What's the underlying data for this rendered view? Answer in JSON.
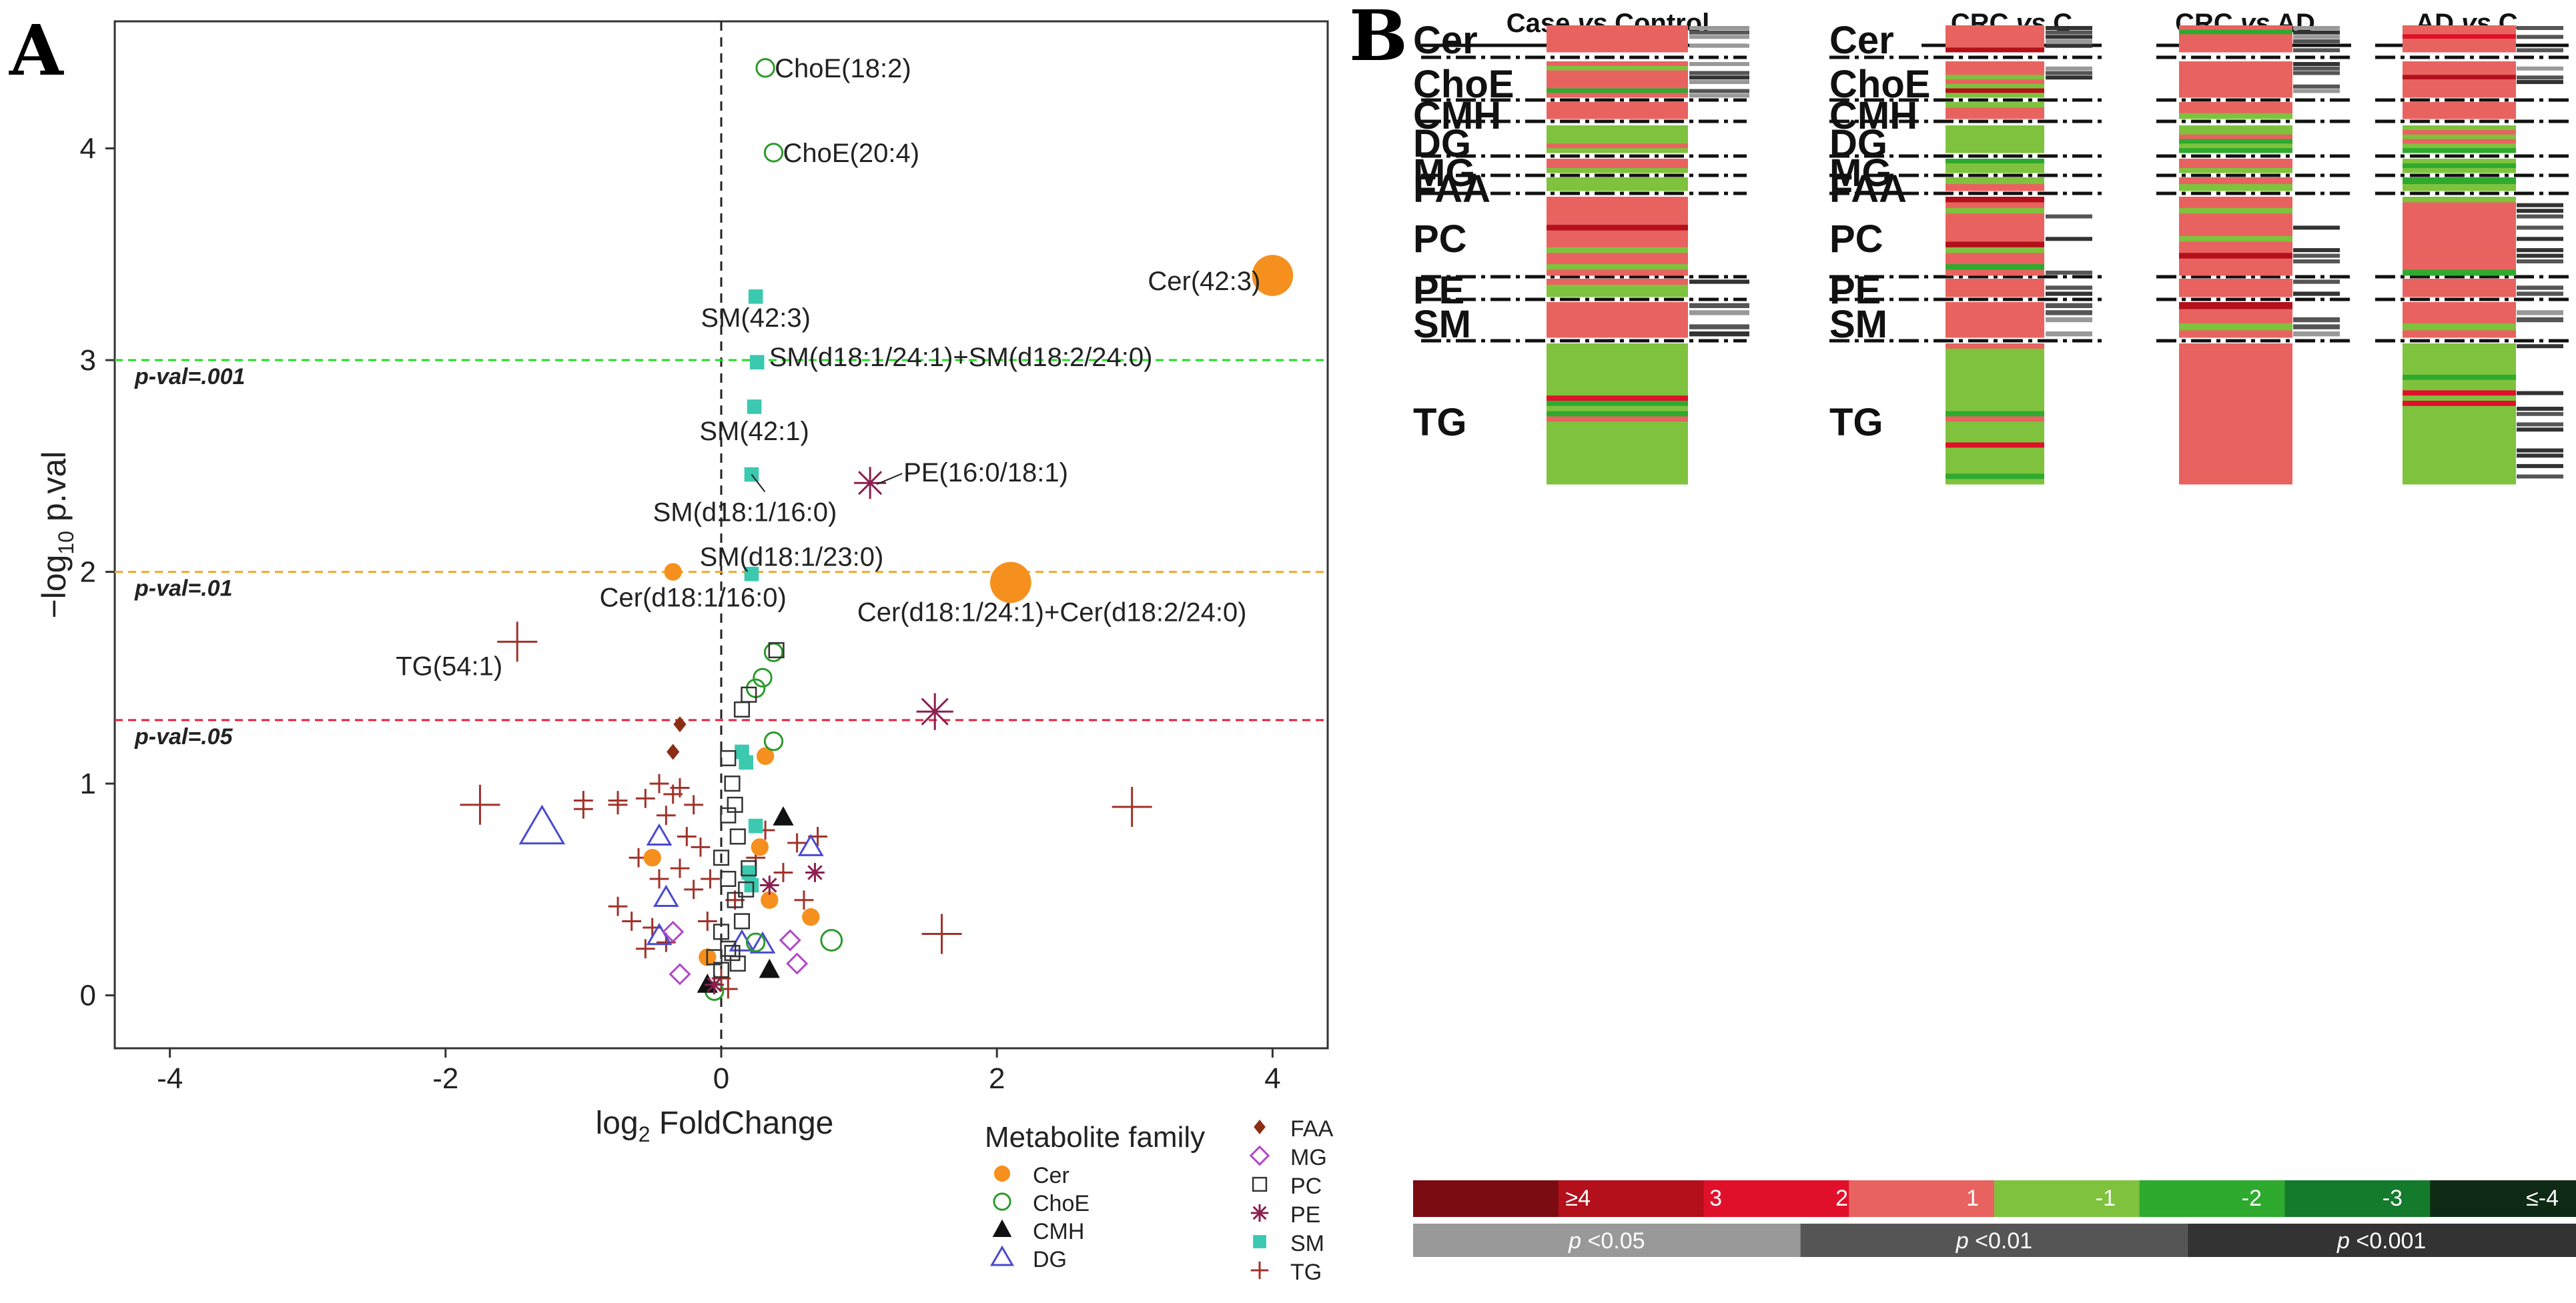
{
  "panel_a": {
    "label": "A",
    "chart_data": {
      "type": "scatter",
      "title": "",
      "xlabel_main": "log",
      "xlabel_sub": "2",
      "xlabel_rest": "FoldChange",
      "ylabel_prefix": "−log",
      "ylabel_sub": "10",
      "ylabel_rest": "p.val",
      "xlim": [
        -4.4,
        4.4
      ],
      "ylim": [
        -0.25,
        4.6
      ],
      "xticks": [
        -4,
        -2,
        0,
        2,
        4
      ],
      "xtick_labels": [
        "-4",
        "-2",
        "0",
        "2",
        "4"
      ],
      "yticks": [
        0,
        1,
        2,
        3,
        4
      ],
      "ytick_labels": [
        "0",
        "1",
        "2",
        "3",
        "4"
      ],
      "thresholds": [
        {
          "label": "p-val=.001",
          "y": 3.0,
          "color": "#22dd22"
        },
        {
          "label": "p-val=.01",
          "y": 2.0,
          "color": "#f5a623"
        },
        {
          "label": "p-val=.05",
          "y": 1.3,
          "color": "#e8203a"
        }
      ],
      "labeled_points": [
        {
          "label": "ChoE(18:2)",
          "family": "ChoE",
          "x": 0.32,
          "y": 4.38
        },
        {
          "label": "ChoE(20:4)",
          "family": "ChoE",
          "x": 0.38,
          "y": 3.98
        },
        {
          "label": "Cer(42:3)",
          "family": "Cer",
          "x": 4.0,
          "y": 3.4,
          "big": true
        },
        {
          "label": "SM(42:3)",
          "family": "SM",
          "x": 0.25,
          "y": 3.3
        },
        {
          "label": "SM(d18:1/24:1)+SM(d18:2/24:0)",
          "family": "SM",
          "x": 0.26,
          "y": 2.99
        },
        {
          "label": "SM(42:1)",
          "family": "SM",
          "x": 0.24,
          "y": 2.78
        },
        {
          "label": "PE(16:0/18:1)",
          "family": "PE",
          "x": 1.08,
          "y": 2.42
        },
        {
          "label": "SM(d18:1/16:0)",
          "family": "SM",
          "x": 0.22,
          "y": 2.46
        },
        {
          "label": "SM(d18:1/23:0)",
          "family": "SM",
          "x": 0.22,
          "y": 1.99
        },
        {
          "label": "Cer(d18:1/16:0)",
          "family": "Cer",
          "x": -0.35,
          "y": 2.0
        },
        {
          "label": "Cer(d18:1/24:1)+Cer(d18:2/24:0)",
          "family": "Cer",
          "x": 2.1,
          "y": 1.95,
          "big": true
        },
        {
          "label": "TG(54:1)",
          "family": "TG",
          "x": -1.48,
          "y": 1.67
        }
      ],
      "points": [
        {
          "family": "ChoE",
          "x": 0.38,
          "y": 1.62
        },
        {
          "family": "PC",
          "x": 0.4,
          "y": 1.63
        },
        {
          "family": "ChoE",
          "x": 0.3,
          "y": 1.5
        },
        {
          "family": "ChoE",
          "x": 0.25,
          "y": 1.45
        },
        {
          "family": "PC",
          "x": 0.15,
          "y": 1.35
        },
        {
          "family": "PC",
          "x": 0.2,
          "y": 1.42
        },
        {
          "family": "PE",
          "x": 1.55,
          "y": 1.34
        },
        {
          "family": "FAA",
          "x": -0.3,
          "y": 1.28
        },
        {
          "family": "FAA",
          "x": -0.35,
          "y": 1.15
        },
        {
          "family": "SM",
          "x": 0.15,
          "y": 1.15
        },
        {
          "family": "SM",
          "x": 0.18,
          "y": 1.1
        },
        {
          "family": "Cer",
          "x": 0.32,
          "y": 1.13
        },
        {
          "family": "ChoE",
          "x": 0.38,
          "y": 1.2
        },
        {
          "family": "PC",
          "x": 0.05,
          "y": 1.12
        },
        {
          "family": "PC",
          "x": 0.08,
          "y": 1.0
        },
        {
          "family": "TG",
          "x": -1.75,
          "y": 0.9
        },
        {
          "family": "TG",
          "x": -1.0,
          "y": 0.92
        },
        {
          "family": "TG",
          "x": -1.0,
          "y": 0.88
        },
        {
          "family": "TG",
          "x": -0.75,
          "y": 0.92
        },
        {
          "family": "TG",
          "x": -0.75,
          "y": 0.9
        },
        {
          "family": "TG",
          "x": -0.55,
          "y": 0.93
        },
        {
          "family": "TG",
          "x": -0.45,
          "y": 1.0
        },
        {
          "family": "TG",
          "x": -0.35,
          "y": 0.95
        },
        {
          "family": "TG",
          "x": -0.3,
          "y": 0.98
        },
        {
          "family": "TG",
          "x": -0.2,
          "y": 0.9
        },
        {
          "family": "TG",
          "x": -0.4,
          "y": 0.85
        },
        {
          "family": "TG",
          "x": -0.25,
          "y": 0.75
        },
        {
          "family": "TG",
          "x": -0.15,
          "y": 0.7
        },
        {
          "family": "TG",
          "x": -0.3,
          "y": 0.6
        },
        {
          "family": "TG",
          "x": -0.2,
          "y": 0.5
        },
        {
          "family": "TG",
          "x": -0.45,
          "y": 0.55
        },
        {
          "family": "TG",
          "x": -0.6,
          "y": 0.65
        },
        {
          "family": "TG",
          "x": -0.75,
          "y": 0.42
        },
        {
          "family": "TG",
          "x": -0.65,
          "y": 0.35
        },
        {
          "family": "TG",
          "x": -0.5,
          "y": 0.32
        },
        {
          "family": "TG",
          "x": -0.55,
          "y": 0.22
        },
        {
          "family": "TG",
          "x": -0.4,
          "y": 0.25
        },
        {
          "family": "TG",
          "x": -0.1,
          "y": 0.35
        },
        {
          "family": "TG",
          "x": -0.08,
          "y": 0.55
        },
        {
          "family": "TG",
          "x": 0.1,
          "y": 0.45
        },
        {
          "family": "TG",
          "x": 0.25,
          "y": 0.65
        },
        {
          "family": "TG",
          "x": 0.32,
          "y": 0.78
        },
        {
          "family": "TG",
          "x": 0.45,
          "y": 0.58
        },
        {
          "family": "TG",
          "x": 0.55,
          "y": 0.72
        },
        {
          "family": "TG",
          "x": 0.7,
          "y": 0.75
        },
        {
          "family": "TG",
          "x": 0.6,
          "y": 0.45
        },
        {
          "family": "TG",
          "x": 2.98,
          "y": 0.89
        },
        {
          "family": "TG",
          "x": 1.6,
          "y": 0.29
        },
        {
          "family": "TG",
          "x": 0.0,
          "y": 0.08
        },
        {
          "family": "TG",
          "x": 0.05,
          "y": 0.03
        },
        {
          "family": "DG",
          "x": -1.3,
          "y": 0.79
        },
        {
          "family": "DG",
          "x": -0.45,
          "y": 0.75
        },
        {
          "family": "DG",
          "x": -0.4,
          "y": 0.46
        },
        {
          "family": "DG",
          "x": -0.45,
          "y": 0.28
        },
        {
          "family": "DG",
          "x": 0.15,
          "y": 0.25
        },
        {
          "family": "DG",
          "x": 0.3,
          "y": 0.24
        },
        {
          "family": "DG",
          "x": 0.65,
          "y": 0.7
        },
        {
          "family": "MG",
          "x": -0.35,
          "y": 0.3
        },
        {
          "family": "MG",
          "x": -0.3,
          "y": 0.1
        },
        {
          "family": "MG",
          "x": 0.55,
          "y": 0.15
        },
        {
          "family": "MG",
          "x": 0.5,
          "y": 0.26
        },
        {
          "family": "Cer",
          "x": -0.5,
          "y": 0.65
        },
        {
          "family": "Cer",
          "x": 0.28,
          "y": 0.7
        },
        {
          "family": "Cer",
          "x": 0.35,
          "y": 0.45
        },
        {
          "family": "Cer",
          "x": 0.65,
          "y": 0.37
        },
        {
          "family": "Cer",
          "x": -0.1,
          "y": 0.18
        },
        {
          "family": "ChoE",
          "x": 0.8,
          "y": 0.26
        },
        {
          "family": "ChoE",
          "x": 0.25,
          "y": 0.25
        },
        {
          "family": "ChoE",
          "x": -0.05,
          "y": 0.02
        },
        {
          "family": "CMH",
          "x": 0.45,
          "y": 0.84
        },
        {
          "family": "CMH",
          "x": 0.35,
          "y": 0.12
        },
        {
          "family": "CMH",
          "x": -0.1,
          "y": 0.05
        },
        {
          "family": "PE",
          "x": 0.35,
          "y": 0.52
        },
        {
          "family": "PE",
          "x": 0.68,
          "y": 0.58
        },
        {
          "family": "PE",
          "x": -0.05,
          "y": 0.05
        },
        {
          "family": "SM",
          "x": 0.2,
          "y": 0.58
        },
        {
          "family": "SM",
          "x": 0.22,
          "y": 0.52
        },
        {
          "family": "SM",
          "x": 0.25,
          "y": 0.8
        },
        {
          "family": "PC",
          "x": 0.1,
          "y": 0.9
        },
        {
          "family": "PC",
          "x": 0.05,
          "y": 0.85
        },
        {
          "family": "PC",
          "x": 0.12,
          "y": 0.75
        },
        {
          "family": "PC",
          "x": 0.0,
          "y": 0.65
        },
        {
          "family": "PC",
          "x": 0.05,
          "y": 0.55
        },
        {
          "family": "PC",
          "x": 0.1,
          "y": 0.45
        },
        {
          "family": "PC",
          "x": 0.15,
          "y": 0.35
        },
        {
          "family": "PC",
          "x": 0.0,
          "y": 0.3
        },
        {
          "family": "PC",
          "x": 0.08,
          "y": 0.2
        },
        {
          "family": "PC",
          "x": 0.12,
          "y": 0.15
        },
        {
          "family": "PC",
          "x": 0.0,
          "y": 0.12
        },
        {
          "family": "PC",
          "x": 0.2,
          "y": 0.6
        },
        {
          "family": "PC",
          "x": 0.05,
          "y": 0.22
        },
        {
          "family": "PC",
          "x": -0.05,
          "y": 0.18
        },
        {
          "family": "PC",
          "x": 0.18,
          "y": 0.5
        }
      ],
      "legend": {
        "title": "Metabolite family",
        "families": [
          {
            "name": "Cer",
            "marker": "dot",
            "color": "#f5901e"
          },
          {
            "name": "ChoE",
            "marker": "circle",
            "color": "#2c9a2c"
          },
          {
            "name": "CMH",
            "marker": "tri-filled",
            "color": "#111111"
          },
          {
            "name": "DG",
            "marker": "tri-open",
            "color": "#4a4acf"
          },
          {
            "name": "FAA",
            "marker": "diamond-filled",
            "color": "#8b2e14"
          },
          {
            "name": "MG",
            "marker": "diamond-open",
            "color": "#b048c8"
          },
          {
            "name": "PC",
            "marker": "square-open",
            "color": "#333333"
          },
          {
            "name": "PE",
            "marker": "star",
            "color": "#8b1f4f"
          },
          {
            "name": "SM",
            "marker": "square-filled",
            "color": "#3bc9b0"
          },
          {
            "name": "TG",
            "marker": "plus",
            "color": "#a0322a"
          }
        ]
      }
    }
  },
  "panel_b": {
    "label": "B",
    "comparisons": [
      {
        "title_pre": "Case ",
        "title_vs": "vs",
        "title_post": " Control"
      },
      {
        "title_pre": "CRC ",
        "title_vs": "vs",
        "title_post": " C"
      },
      {
        "title_pre": "CRC ",
        "title_vs": "vs",
        "title_post": " AD"
      },
      {
        "title_pre": "AD ",
        "title_vs": "vs",
        "title_post": " C"
      }
    ],
    "families": [
      {
        "name": "Cer",
        "rows": 6
      },
      {
        "name": "ChoE",
        "rows": 8
      },
      {
        "name": "CMH",
        "rows": 3
      },
      {
        "name": "DG",
        "rows": 6
      },
      {
        "name": "MG",
        "rows": 3
      },
      {
        "name": "FAA",
        "rows": 2
      },
      {
        "name": "PC",
        "rows": 14
      },
      {
        "name": "PE",
        "rows": 3
      },
      {
        "name": "SM",
        "rows": 5
      },
      {
        "name": "TG",
        "rows": 27
      }
    ],
    "fold_scale": {
      "labels": [
        "≥4",
        "3",
        "2",
        "1",
        "-1",
        "-2",
        "-3",
        "≤-4"
      ],
      "colors": [
        "#7a0c12",
        "#b3101c",
        "#e0102a",
        "#e86360",
        "#7ec23e",
        "#2eaa2e",
        "#147a2c",
        "#0e2a14"
      ]
    },
    "p_scale": [
      {
        "p": "p",
        "label": " <0.05",
        "color": "#999999"
      },
      {
        "p": "p",
        "label": " <0.01",
        "color": "#555555"
      },
      {
        "p": "p",
        "label": " <0.001",
        "color": "#333333"
      }
    ]
  }
}
